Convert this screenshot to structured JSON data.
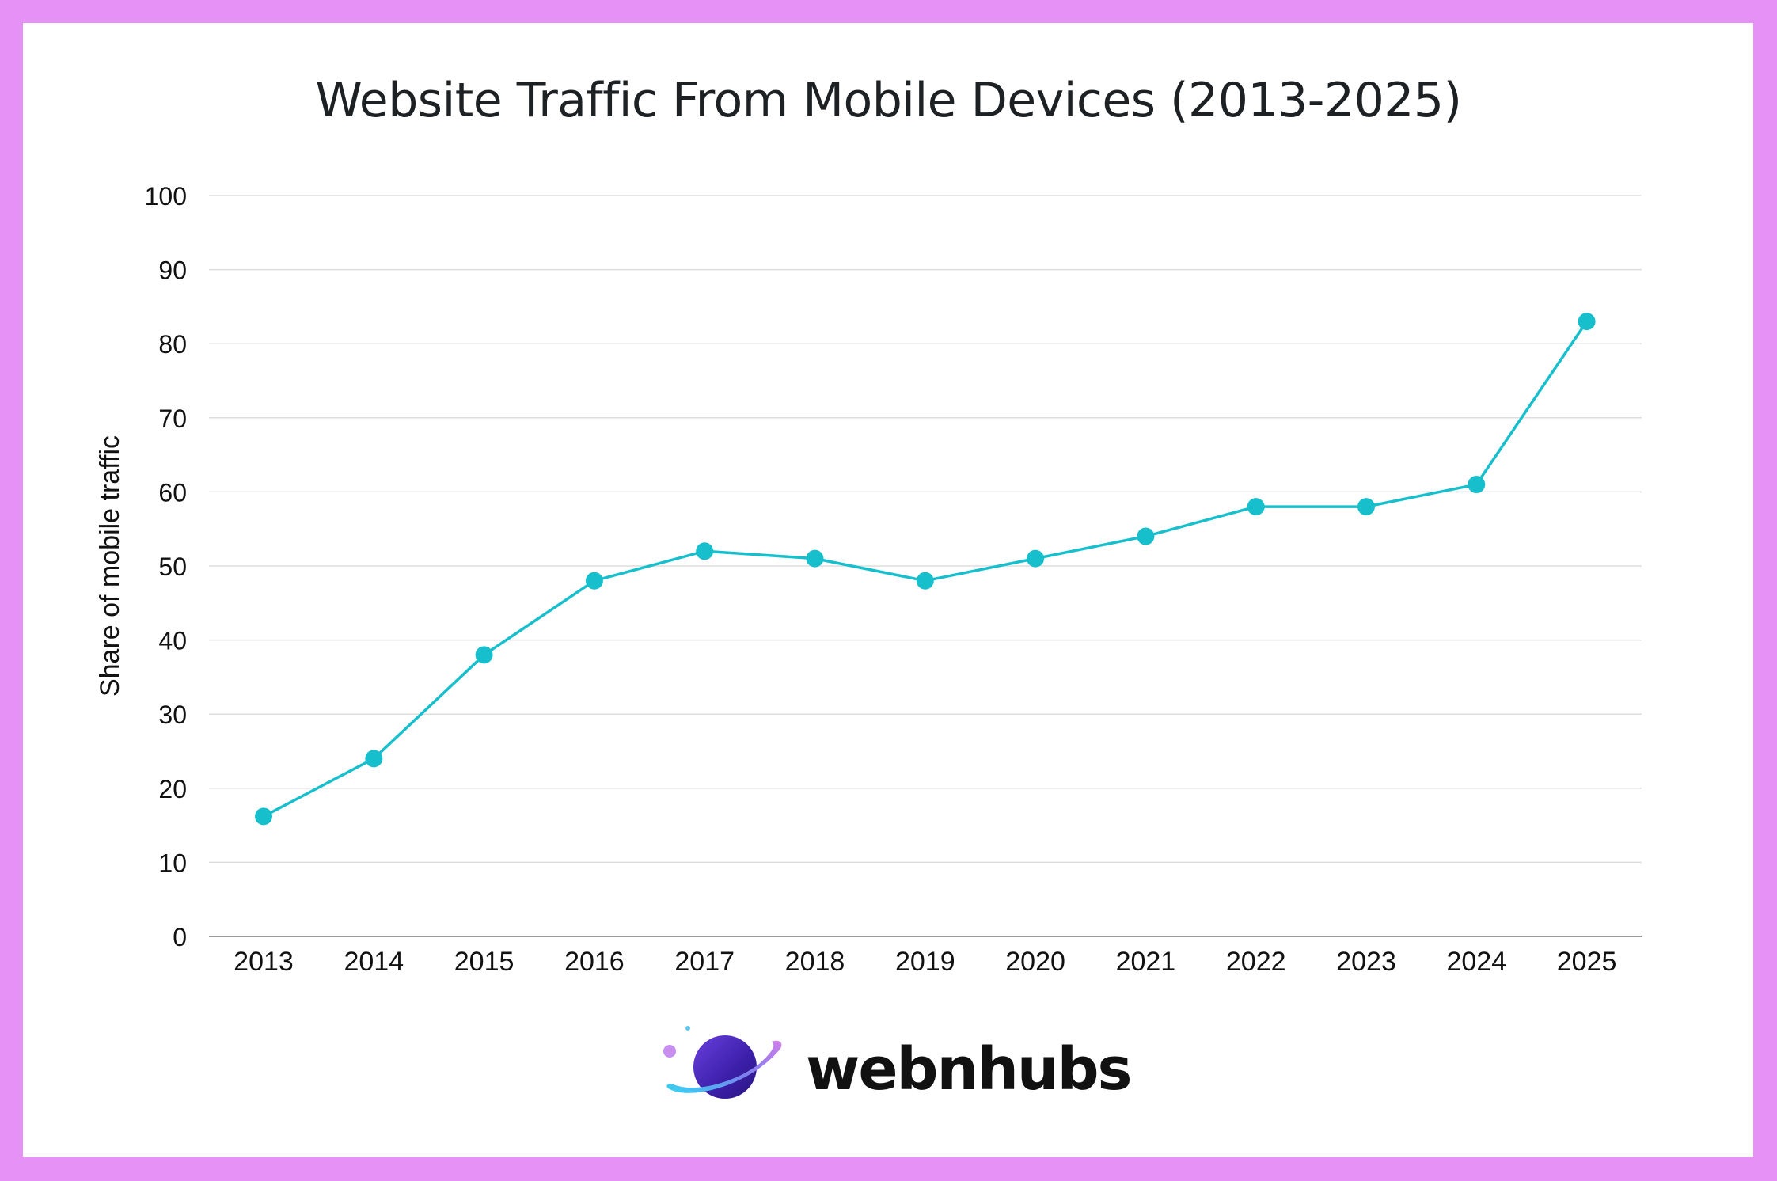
{
  "chart_data": {
    "type": "line",
    "title": "Website Traffic From Mobile Devices (2013-2025)",
    "xlabel": "",
    "ylabel": "Share of  mobile traffic",
    "categories": [
      "2013",
      "2014",
      "2015",
      "2016",
      "2017",
      "2018",
      "2019",
      "2020",
      "2021",
      "2022",
      "2023",
      "2024",
      "2025"
    ],
    "series": [
      {
        "name": "Share of mobile traffic",
        "values": [
          16.2,
          24,
          38,
          48,
          52,
          51,
          48,
          51,
          54,
          58,
          58,
          61,
          83
        ],
        "color": "#17bfcd"
      }
    ],
    "ylim": [
      0,
      100
    ],
    "yticks": [
      0,
      10,
      20,
      30,
      40,
      50,
      60,
      70,
      80,
      90,
      100
    ],
    "grid": true,
    "legend": "none"
  },
  "brand": {
    "name": "webnhubs",
    "logo_icon": "planet-icon"
  },
  "colors": {
    "border": "#e591f6",
    "background": "#ffffff",
    "line": "#17bfcd",
    "grid": "#dddddd",
    "axis": "#999999",
    "text": "#111111"
  }
}
